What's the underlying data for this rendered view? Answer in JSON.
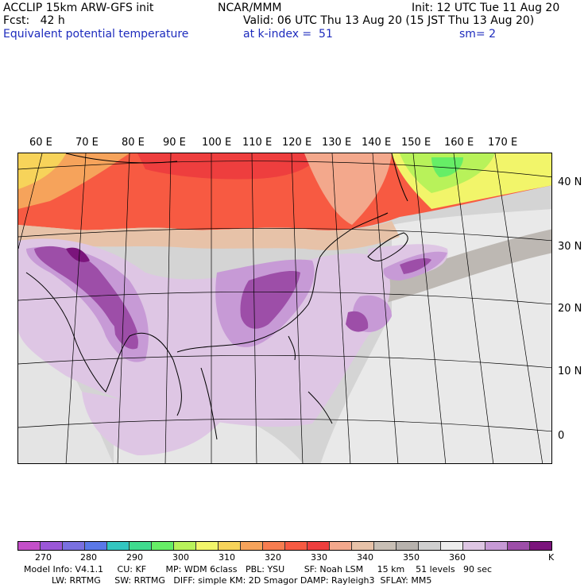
{
  "header": {
    "left1": "ACCLIP 15km ARW-GFS init",
    "left2": "Fcst:   42 h",
    "left3": "Equivalent potential temperature",
    "center1": "NCAR/MMM",
    "init": "Init: 12 UTC Tue 11 Aug 20",
    "valid": "Valid: 06 UTC Thu 13 Aug 20 (15 JST Thu 13 Aug 20)",
    "level": "at k-index =  51",
    "smooth": "sm= 2"
  },
  "map": {
    "lon_labels": [
      "60 E",
      "70 E",
      "80 E",
      "90 E",
      "100 E",
      "110 E",
      "120 E",
      "130 E",
      "140 E",
      "150 E",
      "160 E",
      "170 E"
    ],
    "lat_labels": [
      "40 N",
      "30 N",
      "20 N",
      "10 N",
      "0"
    ]
  },
  "legend": {
    "colors": [
      "#c44fc9",
      "#9b57d8",
      "#7a70e0",
      "#5a78e8",
      "#33c6c0",
      "#3fdb8e",
      "#66ee66",
      "#b8f25a",
      "#f2f56a",
      "#f7d35a",
      "#f6a35b",
      "#f77d50",
      "#f75a42",
      "#ee3e3e",
      "#f3a88c",
      "#e7c2a8",
      "#c8bfb5",
      "#b7b2ad",
      "#cfcfcf",
      "#ededed",
      "#dec6e4",
      "#c79ad6",
      "#9d4ea8",
      "#7b147c"
    ],
    "labels": [
      "270",
      "280",
      "290",
      "300",
      "310",
      "320",
      "330",
      "340",
      "350",
      "360",
      "K"
    ]
  },
  "info": {
    "line1": "Model Info: V4.1.1     CU: KF       MP: WDM 6class   PBL: YSU       SF: Noah LSM     15 km    51 levels   90 sec",
    "line2": "          LW: RRTMG     SW: RRTMG   DIFF: simple KM: 2D Smagor DAMP: Rayleigh3  SFLAY: MM5"
  }
}
